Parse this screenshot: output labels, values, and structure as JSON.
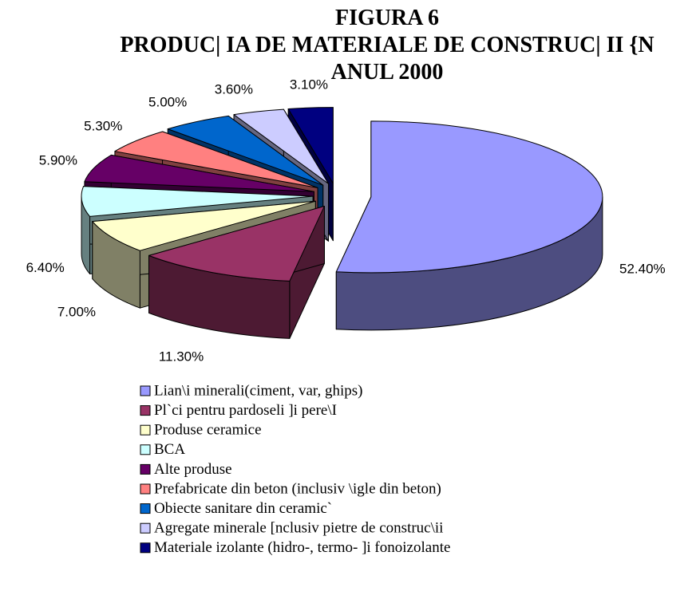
{
  "chart_data": {
    "type": "pie",
    "title": "FIGURA 6",
    "subtitle": "PRODUC| IA DE MATERIALE DE CONSTRUC| II {N ANUL 2000",
    "categories": [
      "Lian\\i minerali(ciment, var, ghips)",
      "Pl`ci pentru pardoseli ]i pere\\I",
      "Produse ceramice",
      "BCA",
      "Alte produse",
      "Prefabricate din beton (inclusiv \\igle din beton)",
      "Obiecte sanitare din ceramic`",
      "Agregate minerale [nclusiv pietre de construc\\ii",
      "Materiale izolante (hidro-, termo- ]i fonoizolante"
    ],
    "values": [
      52.4,
      11.3,
      7.0,
      6.4,
      5.9,
      5.3,
      5.0,
      3.6,
      3.1
    ],
    "value_labels": [
      "52.40%",
      "11.30%",
      "7.00%",
      "6.40%",
      "5.90%",
      "5.30%",
      "5.00%",
      "3.60%",
      "3.10%"
    ],
    "colors": [
      "#9999ff",
      "#993366",
      "#ffffcc",
      "#ccffff",
      "#660066",
      "#ff8080",
      "#0066cc",
      "#ccccff",
      "#000080"
    ],
    "legend": "bottom"
  }
}
